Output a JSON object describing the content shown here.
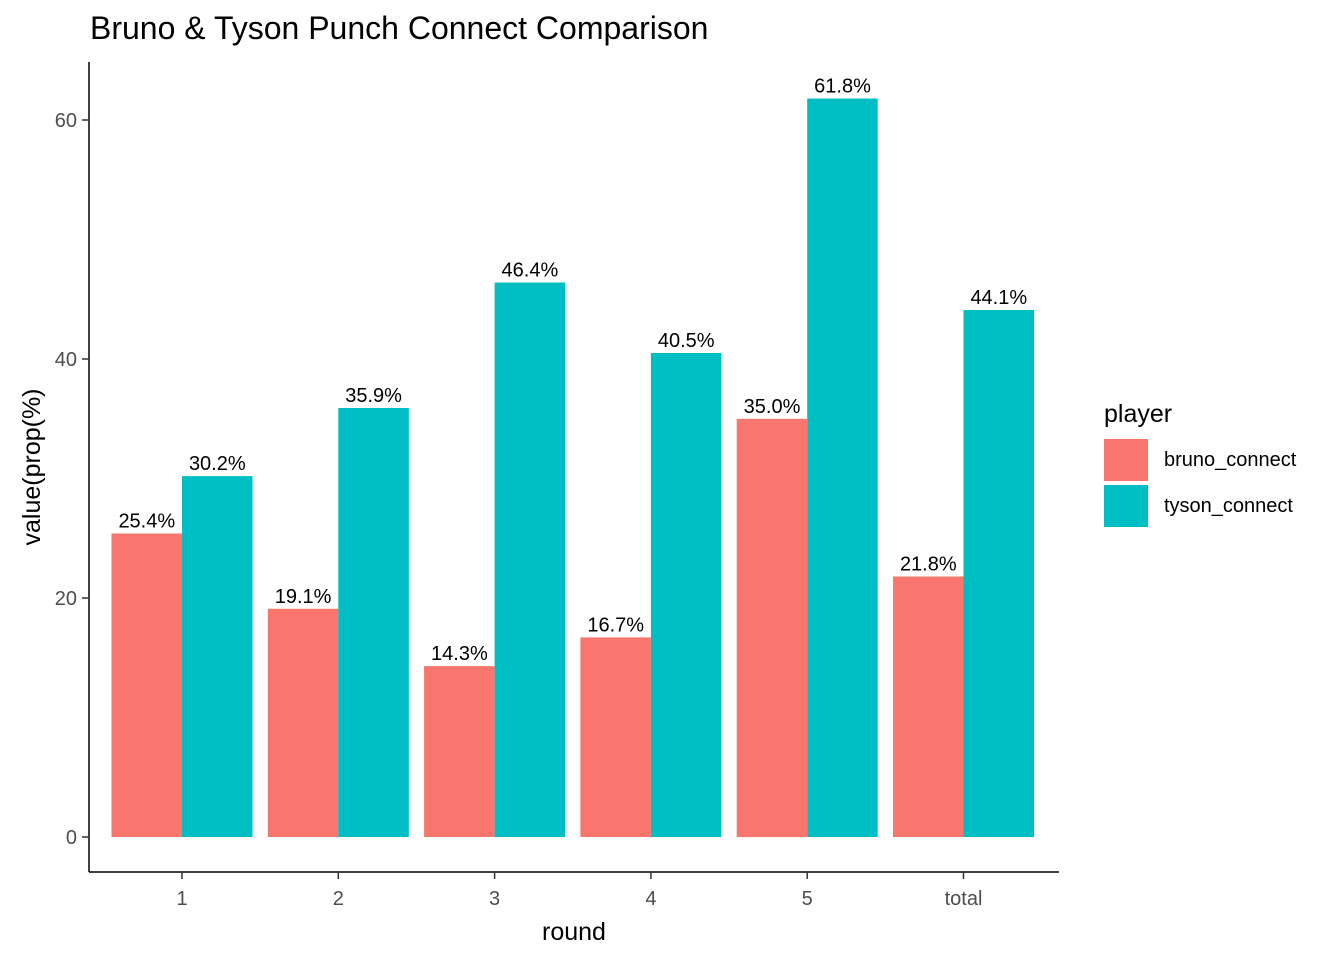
{
  "chart_data": {
    "type": "bar",
    "title": "Bruno & Tyson Punch Connect Comparison",
    "xlabel": "round",
    "ylabel": "value(prop(%)",
    "categories": [
      "1",
      "2",
      "3",
      "4",
      "5",
      "total"
    ],
    "series": [
      {
        "name": "bruno_connect",
        "color": "#F8766D",
        "values": [
          25.4,
          19.1,
          14.3,
          16.7,
          35.0,
          21.8
        ],
        "labels": [
          "25.4%",
          "19.1%",
          "14.3%",
          "16.7%",
          "35.0%",
          "21.8%"
        ]
      },
      {
        "name": "tyson_connect",
        "color": "#00BFC4",
        "values": [
          30.2,
          35.9,
          46.4,
          40.5,
          61.8,
          44.1
        ],
        "labels": [
          "30.2%",
          "35.9%",
          "46.4%",
          "40.5%",
          "61.8%",
          "44.1%"
        ]
      }
    ],
    "yticks": [
      0,
      20,
      40,
      60
    ],
    "ylim": [
      0,
      64.9
    ],
    "legend_title": "player",
    "legend_position": "right",
    "grid": false
  }
}
